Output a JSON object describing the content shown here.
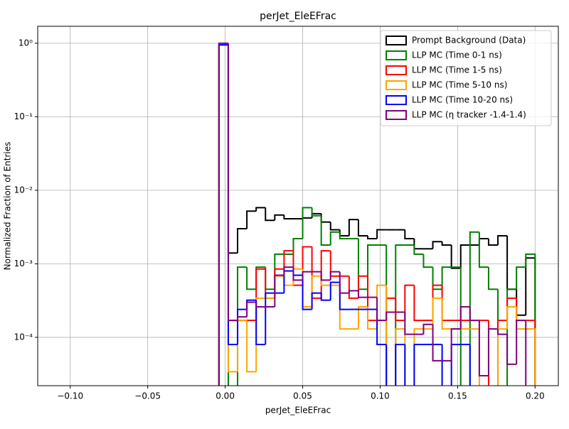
{
  "chart_data": {
    "type": "histogram",
    "title": "perJet_EleEFrac",
    "x_label": "perJet_EleEFrac",
    "y_label": "Normalized Fraction of Entries",
    "log_y": true,
    "grid": true,
    "legend_position": "upper right",
    "xlim": [
      -0.121,
      0.215
    ],
    "ylim": [
      2.2e-05,
      1.7
    ],
    "xticks": [
      {
        "value": -0.1,
        "label": "−0.10"
      },
      {
        "value": -0.05,
        "label": "−0.05"
      },
      {
        "value": 0,
        "label": "0.00"
      },
      {
        "value": 0.05,
        "label": "0.05"
      },
      {
        "value": 0.1,
        "label": "0.10"
      },
      {
        "value": 0.15,
        "label": "0.15"
      },
      {
        "value": 0.2,
        "label": "0.20"
      }
    ],
    "yticks": [
      {
        "value": 0.0001,
        "label": "10⁻⁴"
      },
      {
        "value": 0.001,
        "label": "10⁻³"
      },
      {
        "value": 0.01,
        "label": "10⁻²"
      },
      {
        "value": 0.1,
        "label": "10⁻¹"
      },
      {
        "value": 1,
        "label": "10⁰"
      }
    ],
    "bins": [
      -0.004,
      0.002,
      0.008,
      0.014,
      0.02,
      0.026,
      0.032,
      0.038,
      0.044,
      0.05,
      0.056,
      0.062,
      0.068,
      0.074,
      0.08,
      0.086,
      0.092,
      0.098,
      0.104,
      0.11,
      0.116,
      0.122,
      0.128,
      0.134,
      0.14,
      0.146,
      0.152,
      0.158,
      0.164,
      0.17,
      0.176,
      0.182,
      0.188,
      0.194,
      0.2
    ],
    "series": [
      {
        "name": "Prompt Background (Data)",
        "color": "#000000",
        "values": [
          0.95,
          0.0014,
          0.003,
          0.0052,
          0.0058,
          0.0039,
          0.0046,
          0.0041,
          0.0041,
          0.0042,
          0.0048,
          0.0037,
          0.0029,
          0.0024,
          0.004,
          0.0024,
          0.0022,
          0.0029,
          0.0029,
          0.0029,
          0.0022,
          0.0016,
          0.0016,
          0.002,
          0.0018,
          0.00087,
          0.0018,
          0.0018,
          0.0022,
          0.0018,
          0.0024,
          0.00045,
          0.0002,
          0.0012
        ]
      },
      {
        "name": "LLP MC (Time 0-1 ns)",
        "color": "#008000",
        "values": [
          0.95,
          0,
          0.0009,
          0.00045,
          0.0009,
          0.00045,
          0.00135,
          0.00135,
          0.0022,
          0.0058,
          0.0045,
          0.0018,
          0.0027,
          0.0022,
          0.0022,
          0.00045,
          0.0018,
          0.0018,
          0,
          0.0018,
          0.0018,
          0.00135,
          0.0009,
          0.00045,
          0.0009,
          0.0009,
          0,
          0.0027,
          0.0009,
          0.00045,
          0,
          0.00045,
          0.0009,
          0.00135
        ]
      },
      {
        "name": "LLP MC (Time 1-5 ns)",
        "color": "#ff0000",
        "values": [
          0.95,
          0.00017,
          0.00017,
          0.00017,
          0.00085,
          0.00034,
          0.00085,
          0.0015,
          0.00051,
          0.0017,
          0.00034,
          0.0015,
          0.00068,
          0.00068,
          0.00034,
          0.00068,
          0.00017,
          0.00017,
          0.00034,
          0.00017,
          0.00051,
          0.00017,
          0.00017,
          0.00051,
          0.00017,
          0.00017,
          0.00017,
          0.00017,
          0.00017,
          0,
          0.00017,
          0.00034,
          0.00017,
          0.00017
        ]
      },
      {
        "name": "LLP MC (Time 5-10 ns)",
        "color": "#ffa500",
        "values": [
          0.95,
          3.4e-05,
          0.00017,
          3.4e-05,
          0.00034,
          0.00034,
          0.00068,
          0.00051,
          0.00085,
          0.00026,
          0.00068,
          0.00051,
          0.00051,
          0.00013,
          0.00013,
          0.00026,
          0.00013,
          0.00051,
          0,
          0.00013,
          0,
          0.00013,
          0.00013,
          0.00034,
          0.00013,
          0.00013,
          0.00013,
          0.00013,
          0,
          0,
          0.00013,
          0.00026,
          0.00013,
          0.00013
        ]
      },
      {
        "name": "LLP MC (Time 10-20 ns)",
        "color": "#0000ff",
        "values": [
          0.95,
          8e-05,
          0.00024,
          0.00032,
          8e-05,
          0.0004,
          0.0004,
          0.0008,
          0.0007,
          0.00024,
          0.0004,
          0.00032,
          0.00056,
          0.00024,
          0.00024,
          0.00024,
          0.00024,
          8e-05,
          0,
          8e-05,
          0,
          8e-05,
          8e-05,
          8e-05,
          0,
          8e-05,
          8e-05,
          0,
          0,
          0,
          0,
          0,
          0,
          0
        ]
      },
      {
        "name": "LLP MC (η tracker -1.4-1.4)",
        "color": "#800080",
        "values": [
          1.0,
          0.00017,
          0.00019,
          0.0003,
          0.00026,
          0.00026,
          0.0007,
          0.0009,
          0.0006,
          0.00078,
          0.00078,
          0.0006,
          0.00078,
          0.0004,
          0.00043,
          0.00035,
          0.00035,
          0.00017,
          0.00022,
          0.00022,
          0.00011,
          0.00011,
          0.00015,
          4.8e-05,
          4.8e-05,
          0.00013,
          0.00026,
          0.00017,
          3e-05,
          0.00013,
          0.00011,
          4.3e-05,
          0.00017,
          0
        ]
      }
    ]
  }
}
